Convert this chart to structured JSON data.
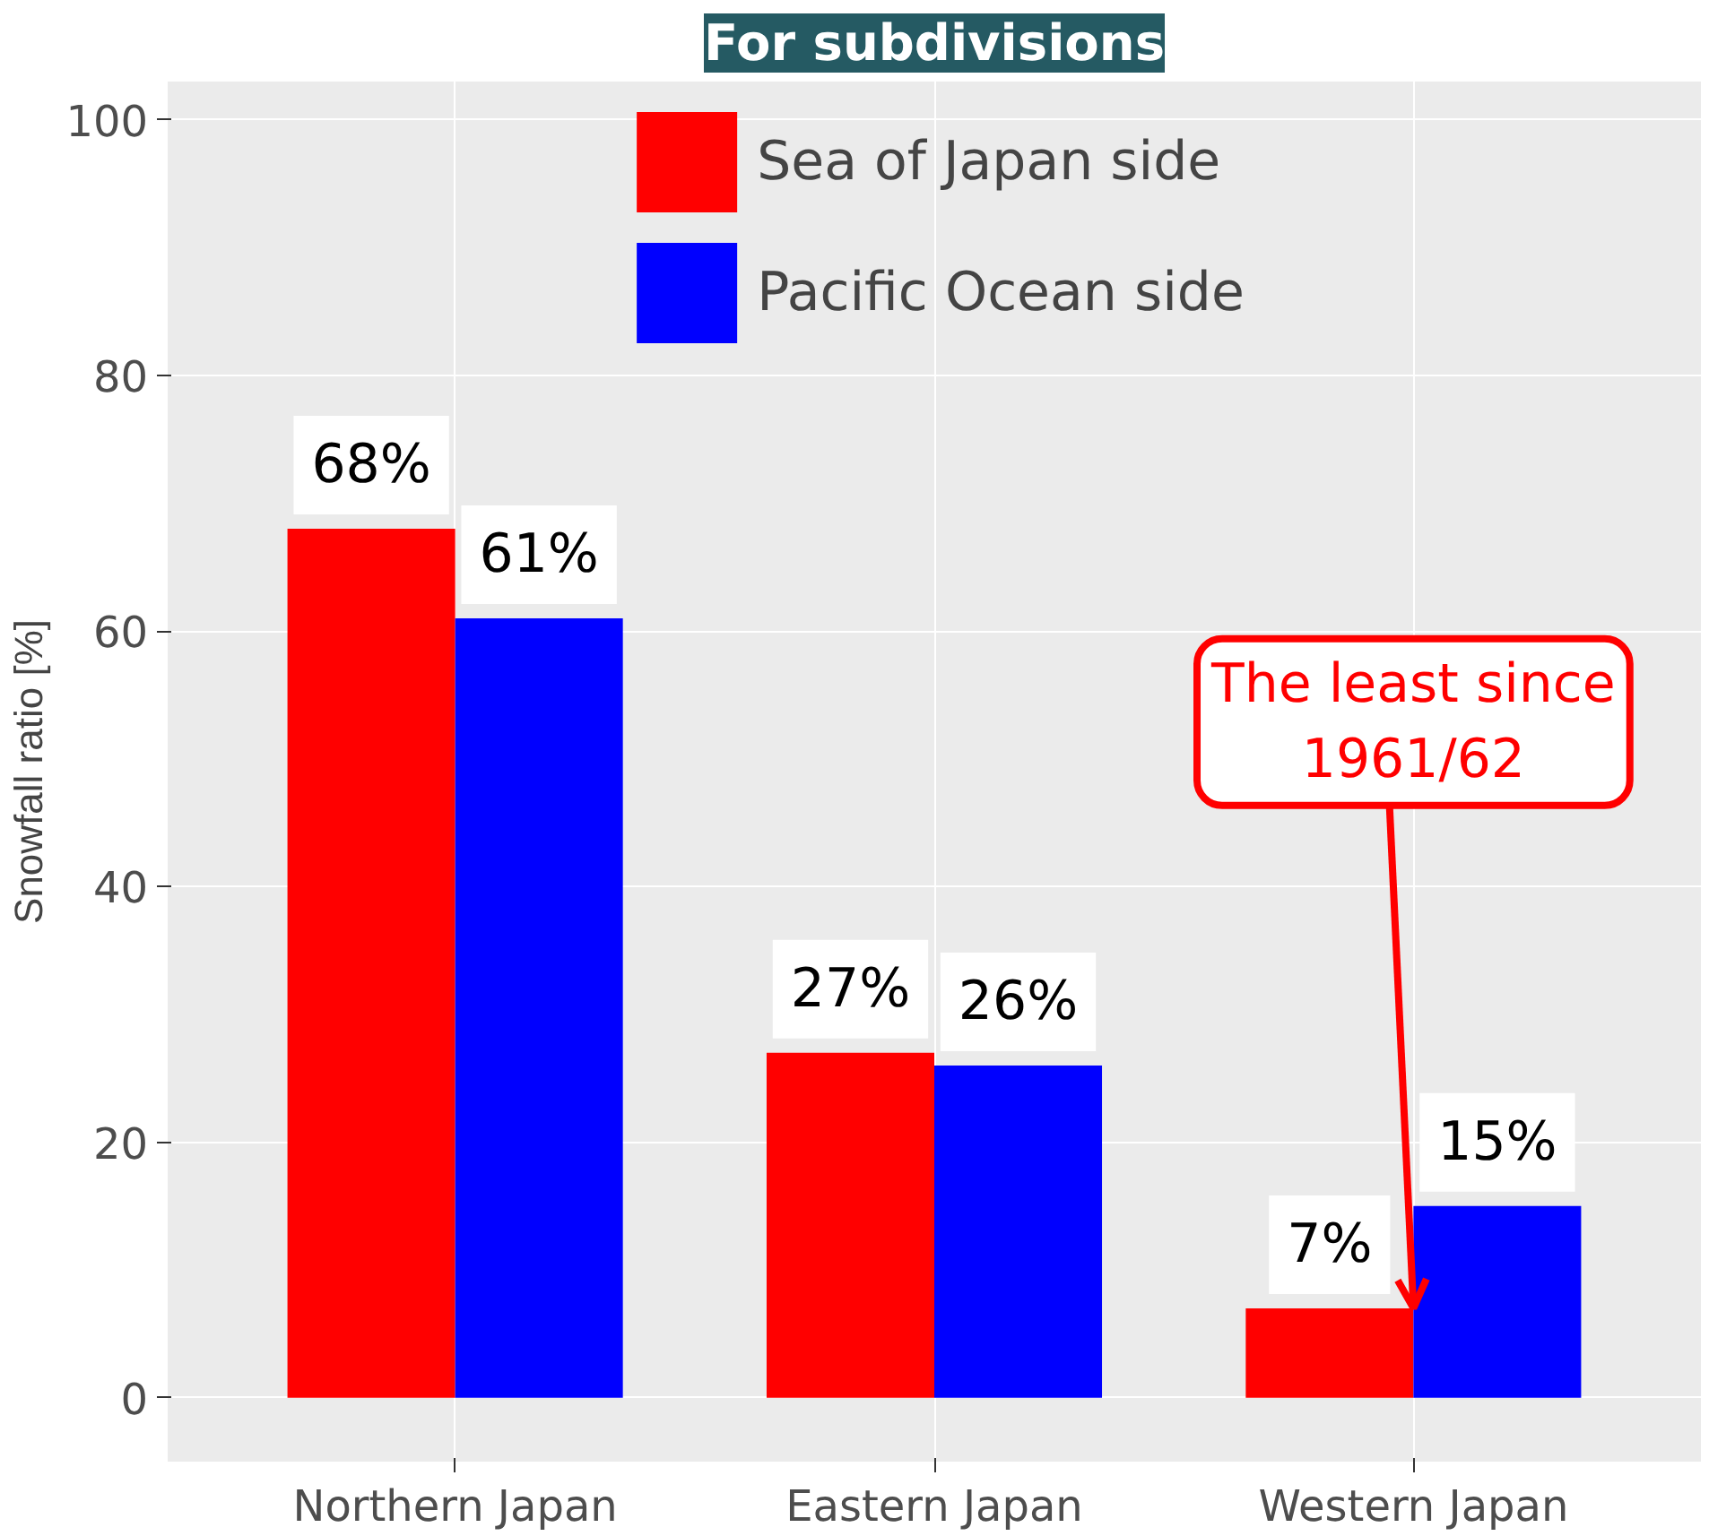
{
  "chart_data": {
    "type": "bar",
    "title": "For subdivisions",
    "ylabel": "Snowfall ratio [%]",
    "categories": [
      "Northern Japan",
      "Eastern Japan",
      "Western Japan"
    ],
    "series": [
      {
        "name": "Sea of Japan side",
        "color": "#ff0000",
        "values": [
          68,
          27,
          7
        ],
        "value_labels": [
          "68%",
          "27%",
          "7%"
        ]
      },
      {
        "name": "Pacific Ocean side",
        "color": "#0000ff",
        "values": [
          61,
          26,
          15
        ],
        "value_labels": [
          "61%",
          "26%",
          "15%"
        ]
      }
    ],
    "ylim": [
      -5,
      103
    ],
    "yticks": [
      0,
      20,
      40,
      60,
      80,
      100
    ],
    "grid": true,
    "legend": "top",
    "annotations": [
      {
        "text": "The least since\n1961/62",
        "x": "Western Japan",
        "y": 7
      }
    ]
  }
}
